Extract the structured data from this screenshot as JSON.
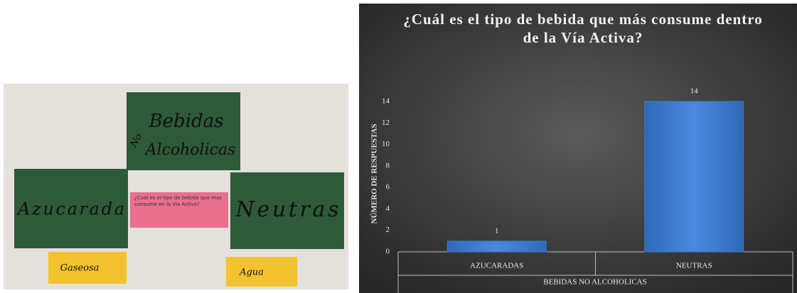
{
  "photo": {
    "heading_line1": "Bebidas",
    "heading_no": "No",
    "heading_line2": "Alcoholicas",
    "left_label": "Azucarada",
    "right_label": "Neutras",
    "question": "¿Cual es el tipo de bebida que mas consume en la Via Activa?",
    "left_example": "Gaseosa",
    "right_example": "Agua"
  },
  "chart_data": {
    "type": "bar",
    "title": "¿Cuál es el tipo de bebida que más consume dentro de la Vía Activa?",
    "y_label": "NÚMERO DE RESPUESTAS",
    "x_label": "BEBIDAS NO ALCOHOLICAS",
    "categories": [
      "AZUCARADAS",
      "NEUTRAS"
    ],
    "values": [
      1,
      14
    ],
    "color": "#3d7bd0",
    "ylim": [
      0,
      14
    ],
    "yticks": [
      0,
      2,
      4,
      6,
      8,
      10,
      12,
      14
    ]
  }
}
